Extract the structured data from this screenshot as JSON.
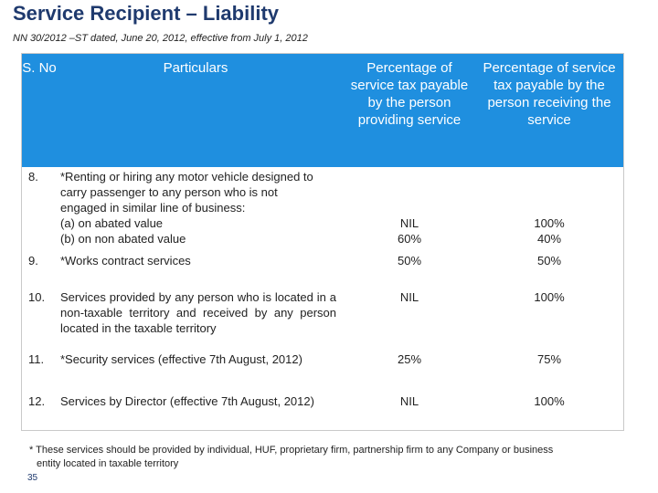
{
  "title": "Service Recipient – Liability",
  "subtitle": "NN 30/2012 –ST dated, June 20, 2012, effective from July 1, 2012",
  "table": {
    "headers": {
      "sno": "S. No",
      "particulars": "Particulars",
      "provider_pct": "Percentage of service tax payable by the person providing service",
      "recipient_pct": "Percentage of service tax payable by the person receiving the service"
    },
    "rows": [
      {
        "sno": "8.",
        "particulars_lines": [
          "*Renting or hiring any motor vehicle designed  to",
          "carry passenger to any person who is not",
          "engaged in similar line of business:",
          "(a) on abated value",
          "(b) on non abated value"
        ],
        "provider": [
          "NIL",
          "60%"
        ],
        "recipient": [
          "100%",
          "40%"
        ]
      },
      {
        "sno": "9.",
        "particulars": "*Works contract services",
        "provider": "50%",
        "recipient": "50%"
      },
      {
        "sno": "10.",
        "particulars": "Services provided by any person who is located in a non-taxable territory and received by any person located in the taxable territory",
        "provider": "NIL",
        "recipient": "100%"
      },
      {
        "sno": "11.",
        "particulars": "*Security services (effective 7th August, 2012)",
        "provider": "25%",
        "recipient": "75%"
      },
      {
        "sno": "12.",
        "particulars": "Services by Director (effective 7th August, 2012)",
        "provider": "NIL",
        "recipient": "100%"
      }
    ]
  },
  "footnote": {
    "line1": "* These services should be provided by individual, HUF, proprietary firm, partnership firm to any Company or business",
    "line2": "entity located in taxable territory"
  },
  "page_number": "35",
  "colors": {
    "header_bg": "#1f8fdf",
    "title": "#1f3a6e"
  }
}
